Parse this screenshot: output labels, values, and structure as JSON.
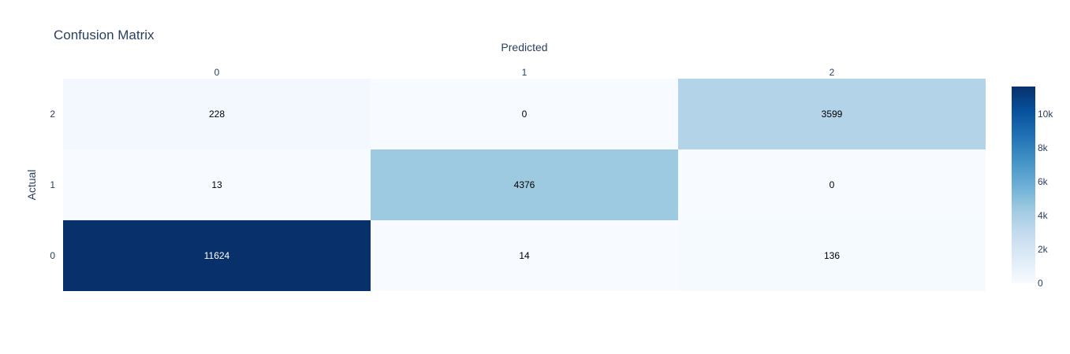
{
  "chart_data": {
    "type": "heatmap",
    "title": "Confusion Matrix",
    "xlabel": "Predicted",
    "ylabel": "Actual",
    "x_categories": [
      "0",
      "1",
      "2"
    ],
    "y_categories": [
      "0",
      "1",
      "2"
    ],
    "values": [
      [
        11624,
        14,
        136
      ],
      [
        13,
        4376,
        0
      ],
      [
        228,
        0,
        3599
      ]
    ],
    "x_axis_side": "top",
    "colorscale": "Blues",
    "zmin": 0,
    "zmax": 11624,
    "colorbar": {
      "tick_values": [
        0,
        2000,
        4000,
        6000,
        8000,
        10000
      ],
      "tick_labels": [
        "0",
        "2k",
        "4k",
        "6k",
        "8k",
        "10k"
      ]
    }
  }
}
